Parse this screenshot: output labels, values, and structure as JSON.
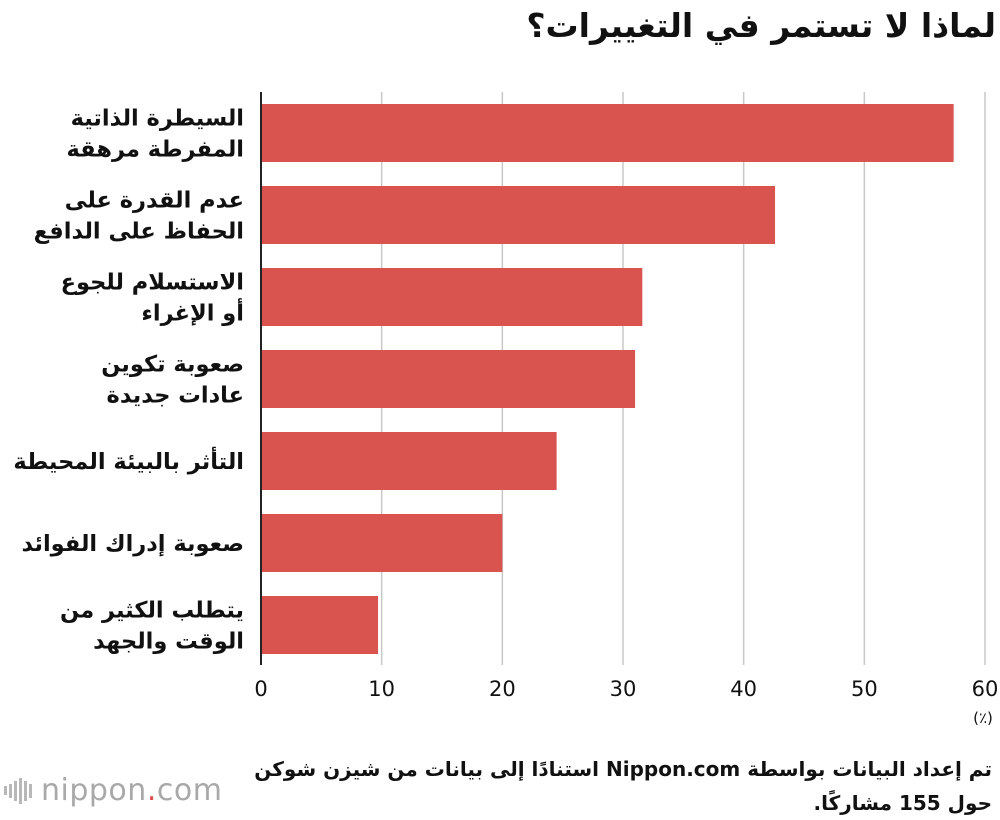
{
  "title": "لماذا لا تستمر في التغييرات؟",
  "chart_data": {
    "type": "bar",
    "orientation": "horizontal",
    "categories": [
      [
        "السيطرة الذاتية",
        "المفرطة مرهقة"
      ],
      [
        "عدم القدرة على",
        "الحفاظ على الدافع"
      ],
      [
        "الاستسلام للجوع",
        "أو الإغراء"
      ],
      [
        "صعوبة تكوين",
        "عادات جديدة"
      ],
      [
        "التأثر بالبيئة المحيطة"
      ],
      [
        "صعوبة إدراك الفوائد"
      ],
      [
        "يتطلب الكثير من",
        "الوقت والجهد"
      ]
    ],
    "values": [
      57.4,
      42.6,
      31.6,
      31.0,
      24.5,
      20.0,
      9.7
    ],
    "xlim": [
      0,
      60
    ],
    "xticks": [
      0,
      10,
      20,
      30,
      40,
      50,
      60
    ],
    "xticks_labels": [
      "0",
      "10",
      "20",
      "30",
      "40",
      "50",
      "60"
    ],
    "unit": "(٪)",
    "bar_color": "#d9534f",
    "grid": true
  },
  "source": "تم إعداد البيانات بواسطة Nippon.com استنادًا إلى بيانات من شيزن شوكن حول 155 مشاركًا.",
  "logo": {
    "text": "nippon",
    "dot": ".",
    "suffix": "com",
    "color": "#a9a9a9",
    "dot_color": "#d9534f"
  }
}
